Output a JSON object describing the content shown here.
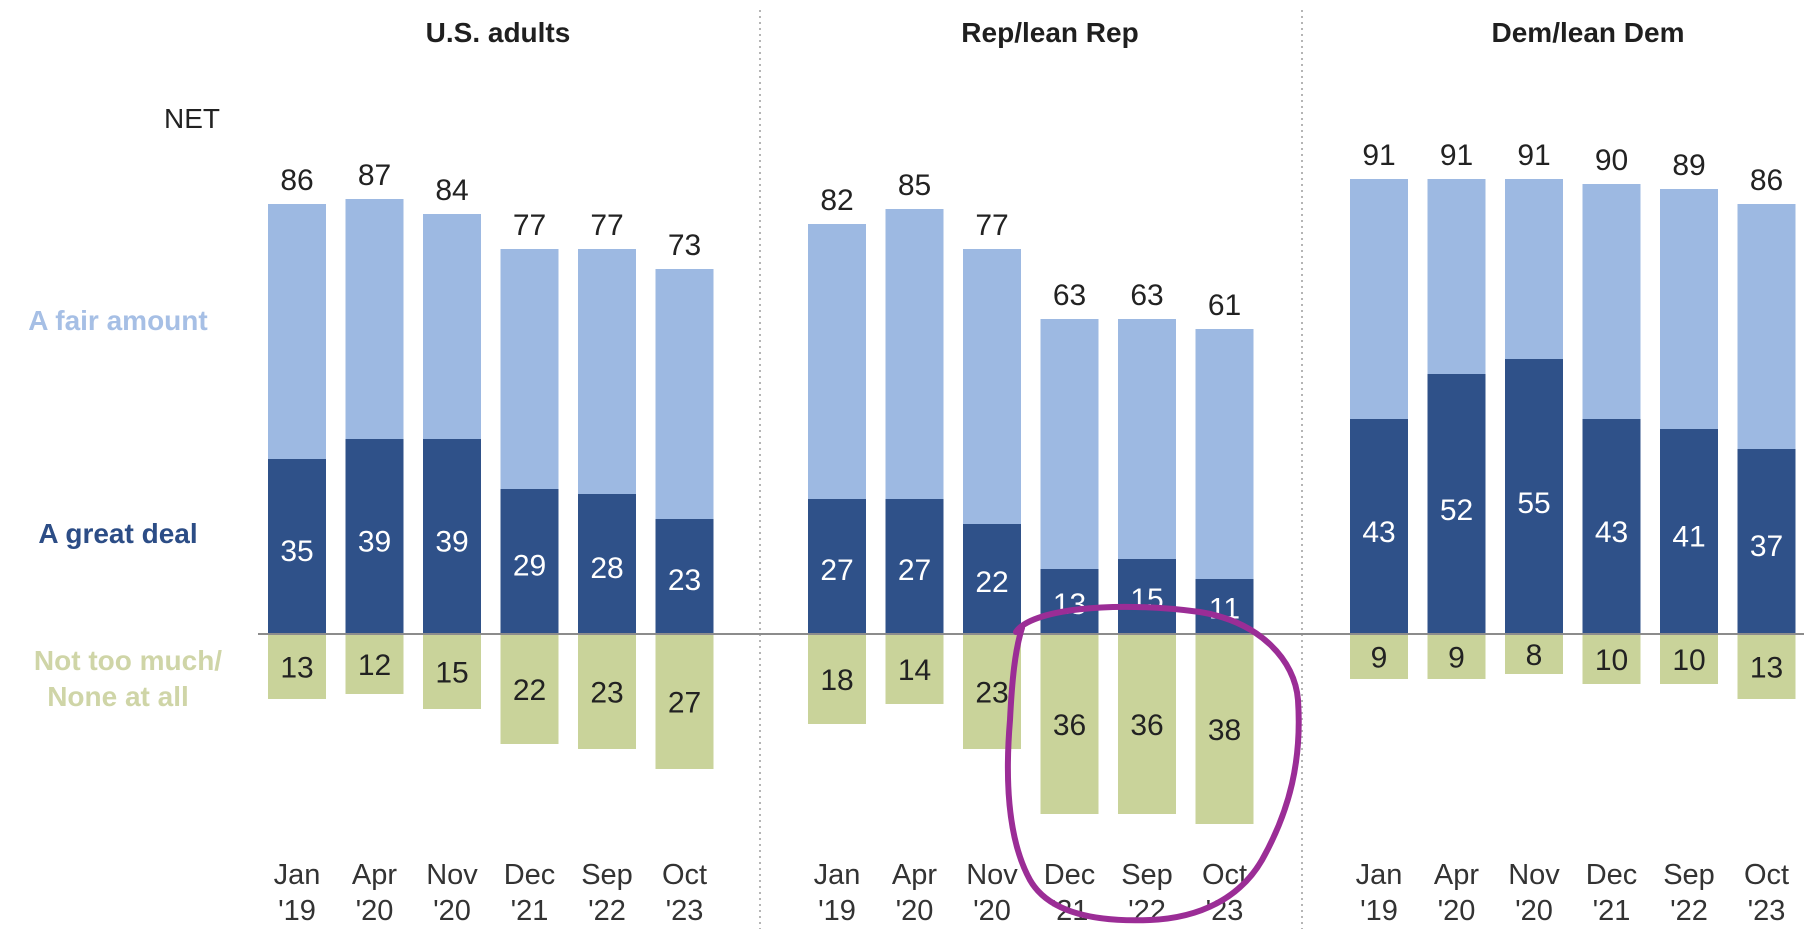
{
  "colors": {
    "fair_amount": "#9db9e2",
    "great_deal": "#2f5189",
    "not_too_much": "#c9d39a",
    "fair_label": "#a6bfe5",
    "great_label": "#2c4d86",
    "not_label": "#cfd5a7",
    "baseline": "#8c8c8c",
    "divider": "#b5b5b5",
    "annotation": "#9b2d96"
  },
  "row_labels": {
    "net": "NET",
    "fair_amount": "A fair amount",
    "great_deal": "A great deal",
    "not_too_much_line1": "Not too much/",
    "not_too_much_line2": "None at all"
  },
  "chart_data": [
    {
      "type": "bar",
      "title": "U.S. adults",
      "categories": [
        "Jan '19",
        "Apr '20",
        "Nov '20",
        "Dec '21",
        "Sep '22",
        "Oct '23"
      ],
      "category_lines": [
        [
          "Jan",
          "'19"
        ],
        [
          "Apr",
          "'20"
        ],
        [
          "Nov",
          "'20"
        ],
        [
          "Dec",
          "'21"
        ],
        [
          "Sep",
          "'22"
        ],
        [
          "Oct",
          "'23"
        ]
      ],
      "net": [
        86,
        87,
        84,
        77,
        77,
        73
      ],
      "series": [
        {
          "name": "A great deal",
          "values": [
            35,
            39,
            39,
            29,
            28,
            23
          ]
        },
        {
          "name": "A fair amount",
          "values": [
            51,
            48,
            45,
            48,
            49,
            50
          ]
        },
        {
          "name": "Not too much/ None at all",
          "values": [
            13,
            12,
            15,
            22,
            23,
            27
          ]
        }
      ]
    },
    {
      "type": "bar",
      "title": "Rep/lean Rep",
      "categories": [
        "Jan '19",
        "Apr '20",
        "Nov '20",
        "Dec '21",
        "Sep '22",
        "Oct '23"
      ],
      "category_lines": [
        [
          "Jan",
          "'19"
        ],
        [
          "Apr",
          "'20"
        ],
        [
          "Nov",
          "'20"
        ],
        [
          "Dec",
          "'21"
        ],
        [
          "Sep",
          "'22"
        ],
        [
          "Oct",
          "'23"
        ]
      ],
      "net": [
        82,
        85,
        77,
        63,
        63,
        61
      ],
      "series": [
        {
          "name": "A great deal",
          "values": [
            27,
            27,
            22,
            13,
            15,
            11
          ]
        },
        {
          "name": "A fair amount",
          "values": [
            55,
            58,
            55,
            50,
            48,
            50
          ]
        },
        {
          "name": "Not too much/ None at all",
          "values": [
            18,
            14,
            23,
            36,
            36,
            38
          ]
        }
      ]
    },
    {
      "type": "bar",
      "title": "Dem/lean Dem",
      "categories": [
        "Jan '19",
        "Apr '20",
        "Nov '20",
        "Dec '21",
        "Sep '22",
        "Oct '23"
      ],
      "category_lines": [
        [
          "Jan",
          "'19"
        ],
        [
          "Apr",
          "'20"
        ],
        [
          "Nov",
          "'20"
        ],
        [
          "Dec",
          "'21"
        ],
        [
          "Sep",
          "'22"
        ],
        [
          "Oct",
          "'23"
        ]
      ],
      "net": [
        91,
        91,
        91,
        90,
        89,
        86
      ],
      "series": [
        {
          "name": "A great deal",
          "values": [
            43,
            52,
            55,
            43,
            41,
            37
          ]
        },
        {
          "name": "A fair amount",
          "values": [
            48,
            39,
            36,
            47,
            48,
            49
          ]
        },
        {
          "name": "Not too much/ None at all",
          "values": [
            9,
            9,
            8,
            10,
            10,
            13
          ]
        }
      ]
    }
  ],
  "annotation": {
    "type": "hand-drawn circle",
    "target": "Rep/lean Rep Dec '21 - Oct '23 negative bars"
  }
}
